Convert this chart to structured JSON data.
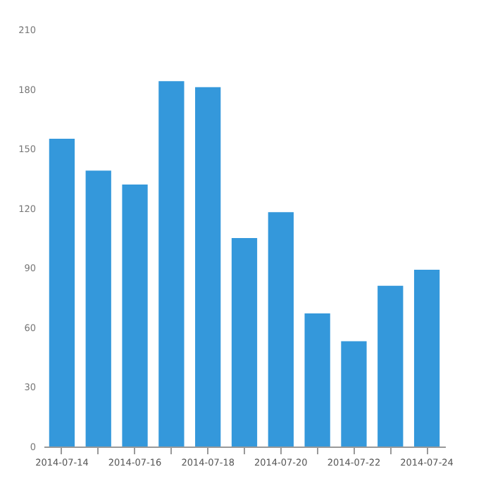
{
  "chart_data": {
    "type": "bar",
    "categories": [
      "2014-07-14",
      null,
      "2014-07-16",
      null,
      "2014-07-18",
      null,
      "2014-07-20",
      null,
      "2014-07-22",
      null,
      "2014-07-24"
    ],
    "values": [
      155,
      139,
      132,
      184,
      181,
      105,
      118,
      67,
      53,
      81,
      89
    ],
    "color": "#3498db",
    "ylim": [
      0,
      210
    ],
    "yticks": [
      0,
      30,
      60,
      90,
      120,
      150,
      180,
      210
    ],
    "grid": false
  }
}
